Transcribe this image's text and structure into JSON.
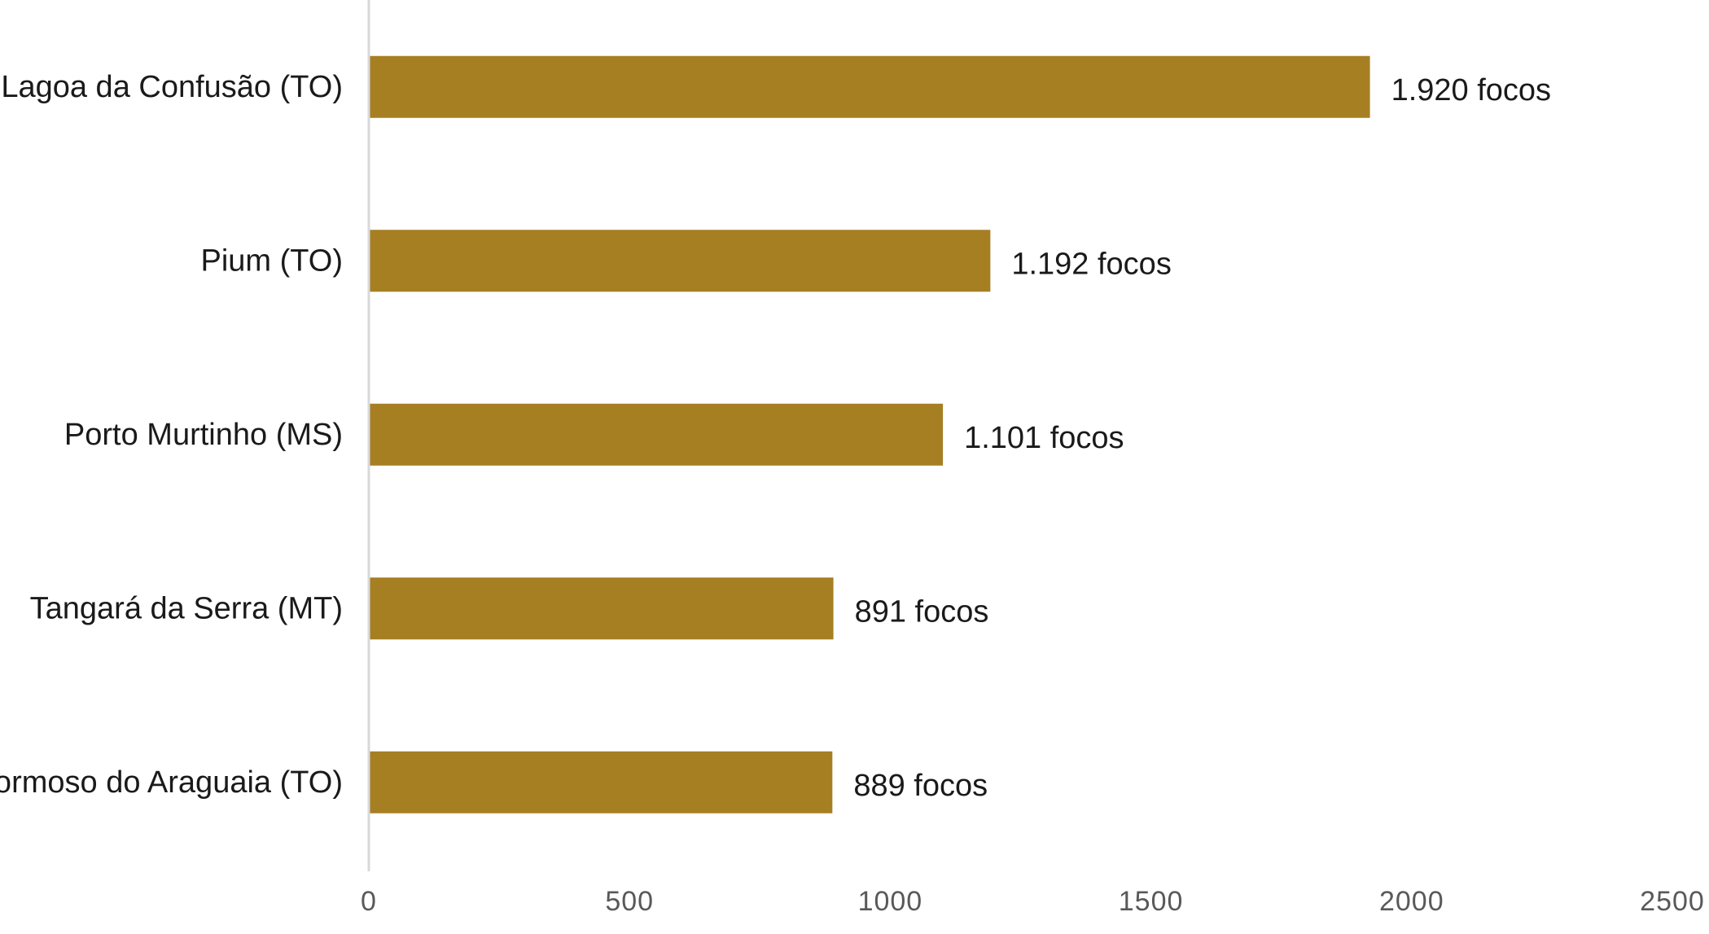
{
  "chart_data": {
    "type": "bar",
    "orientation": "horizontal",
    "title": "",
    "xlabel": "",
    "ylabel": "",
    "categories": [
      "Lagoa da Confusão (TO)",
      "Pium (TO)",
      "Porto Murtinho (MS)",
      "Tangará da Serra (MT)",
      "Formoso do Araguaia (TO)"
    ],
    "values": [
      1920,
      1192,
      1101,
      891,
      889
    ],
    "data_labels": [
      "1.920 focos",
      "1.192 focos",
      "1.101 focos",
      "891 focos",
      "889 focos"
    ],
    "xlim": [
      0,
      2500
    ],
    "x_ticks": [
      0,
      500,
      1000,
      1500,
      2000,
      2500
    ],
    "x_tick_labels": [
      "0",
      "500",
      "1000",
      "1500",
      "2000",
      "2500"
    ],
    "grid": false,
    "legend": "none",
    "colors": {
      "bar": "#a67f23",
      "axis_line": "#d9d9d9",
      "category_text": "#1a1a1a",
      "tick_text": "#595959"
    }
  }
}
